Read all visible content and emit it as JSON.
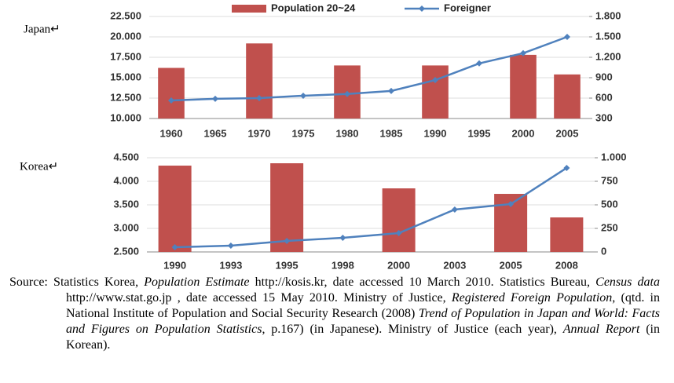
{
  "chart_data": [
    {
      "type": "combo",
      "region_label": "Japan↵",
      "categories": [
        "1960",
        "1965",
        "1970",
        "1975",
        "1980",
        "1985",
        "1990",
        "1995",
        "2000",
        "2005"
      ],
      "series": [
        {
          "name": "Population 20~24",
          "color": "#c0504d",
          "kind": "bar",
          "values": [
            16200,
            null,
            19200,
            null,
            16500,
            null,
            16500,
            null,
            17800,
            15400
          ]
        },
        {
          "name": "Foreigner",
          "color": "#4f81bd",
          "kind": "line",
          "axis": "y2",
          "values": [
            565,
            590,
            600,
            635,
            660,
            705,
            865,
            1110,
            1260,
            1500
          ]
        }
      ],
      "ylim": [
        10000,
        22500
      ],
      "yticks": [
        {
          "value": 10000,
          "label": "10.000"
        },
        {
          "value": 12500,
          "label": "12.500"
        },
        {
          "value": 15000,
          "label": "15.000"
        },
        {
          "value": 17500,
          "label": "17.500"
        },
        {
          "value": 20000,
          "label": "20.000"
        },
        {
          "value": 22500,
          "label": "22.500"
        }
      ],
      "y2lim": [
        300,
        1800
      ],
      "y2ticks": [
        300,
        600,
        900,
        {
          "value": 1200,
          "label": "1.200"
        },
        {
          "value": 1500,
          "label": "1.500"
        },
        {
          "value": 1800,
          "label": "1.800"
        }
      ],
      "grid": true,
      "legend": "top"
    },
    {
      "type": "combo",
      "region_label": "Korea↵",
      "categories": [
        "1990",
        "1993",
        "1995",
        "1998",
        "2000",
        "2003",
        "2005",
        "2008"
      ],
      "series": [
        {
          "color": "#c0504d",
          "kind": "bar",
          "values": [
            4333,
            null,
            4383,
            null,
            3850,
            null,
            3733,
            3233
          ]
        },
        {
          "color": "#4f81bd",
          "kind": "line",
          "axis": "y2",
          "values": [
            50,
            67,
            117,
            150,
            200,
            450,
            508,
            892
          ]
        }
      ],
      "ylim": [
        2500,
        4500
      ],
      "yticks": [
        {
          "value": 2500,
          "label": "2.500"
        },
        {
          "value": 3000,
          "label": "3.000"
        },
        {
          "value": 3500,
          "label": "3.500"
        },
        {
          "value": 4000,
          "label": "4.000"
        },
        {
          "value": 4500,
          "label": "4.500"
        }
      ],
      "y2lim": [
        0,
        1000
      ],
      "y2ticks": [
        0,
        250,
        500,
        750,
        {
          "value": 1000,
          "label": "1.000"
        }
      ],
      "grid": true
    }
  ],
  "source": {
    "label": "Source:",
    "segments": [
      {
        "text": "Statistics Korea, ",
        "italic": false
      },
      {
        "text": "Population Estimate",
        "italic": true
      },
      {
        "text": " http://kosis.kr, date accessed 10 March 2010. Statistics Bureau, ",
        "italic": false
      },
      {
        "text": "Census data",
        "italic": true
      },
      {
        "text": " http://www.stat.go.jp , date accessed 15 May 2010. Ministry of Justice, ",
        "italic": false
      },
      {
        "text": "Registered Foreign Population",
        "italic": true
      },
      {
        "text": ", (qtd. in National Institute of Population and Social Security Research (2008) ",
        "italic": false
      },
      {
        "text": "Trend of Population in Japan and World: Facts and Figures on Population Statistics",
        "italic": true
      },
      {
        "text": ", p.167) (in Japanese). Ministry of Justice (each year), ",
        "italic": false
      },
      {
        "text": "Annual Report",
        "italic": true
      },
      {
        "text": " (in Korean).",
        "italic": false
      }
    ]
  }
}
